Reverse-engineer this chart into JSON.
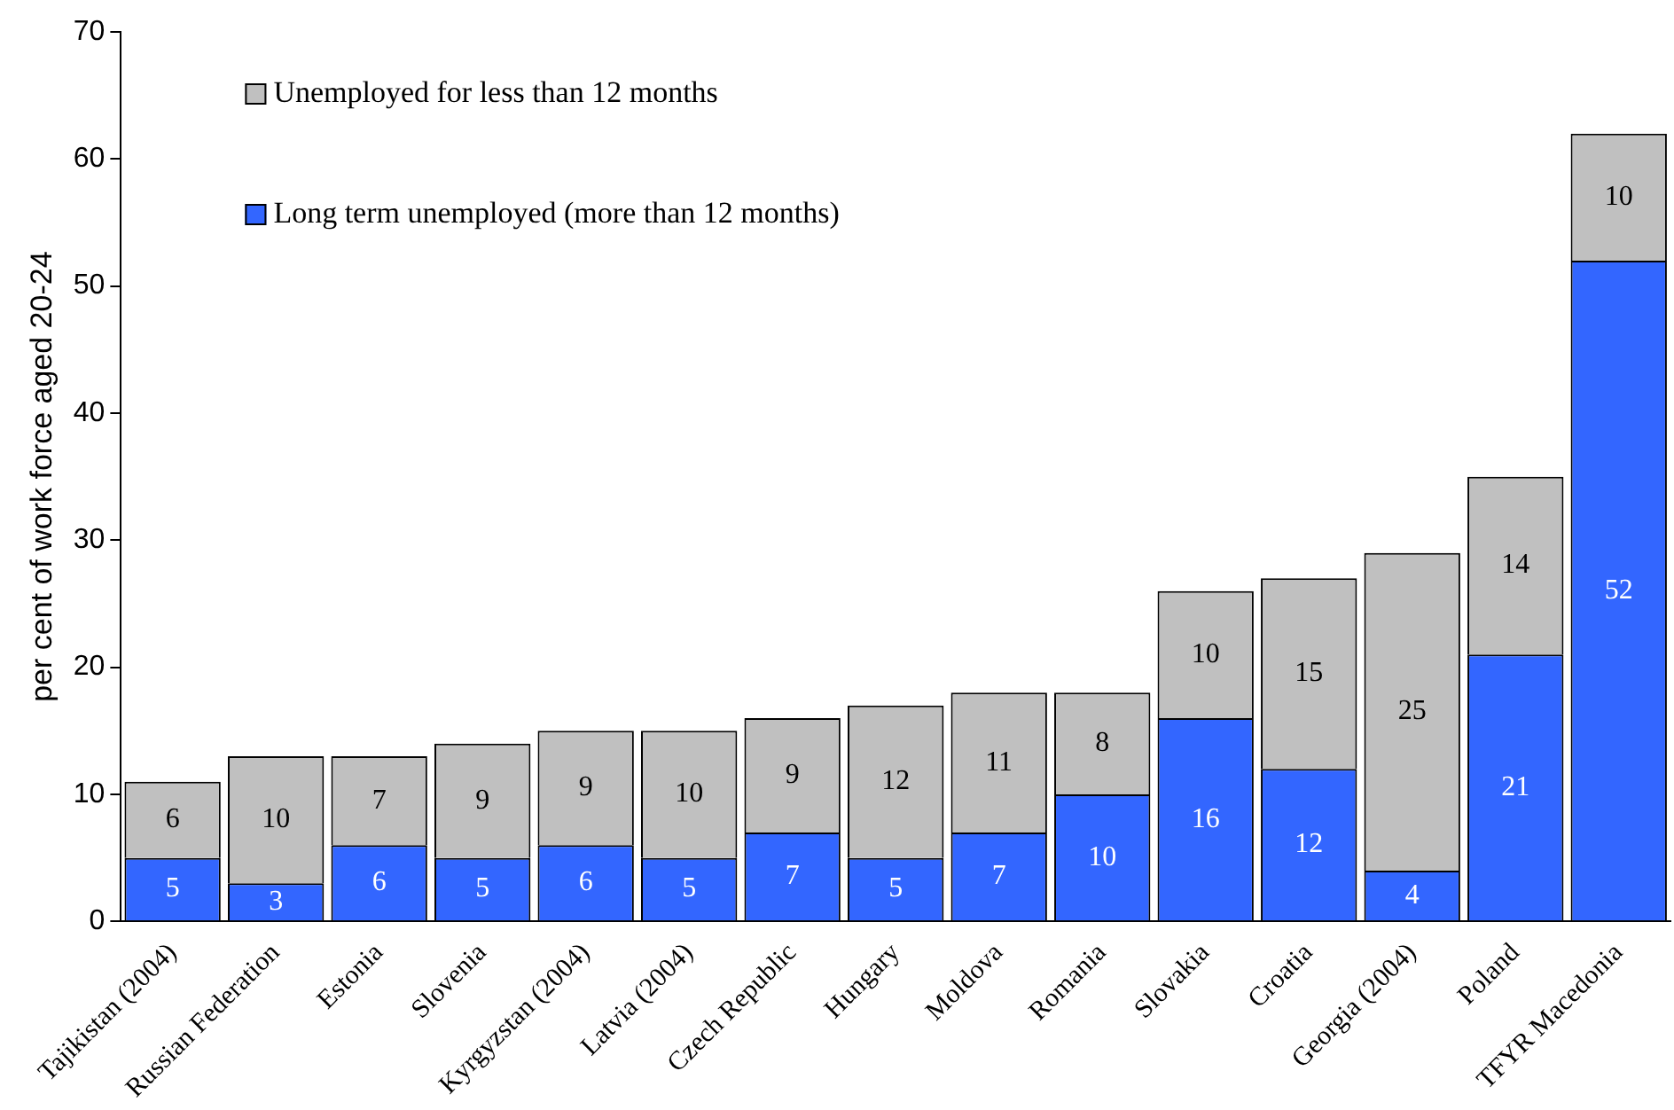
{
  "chart_data": {
    "type": "bar",
    "stacked": true,
    "ylabel": "per cent of work force aged 20-24",
    "categories": [
      "Tajikistan (2004)",
      "Russian Federation",
      "Estonia",
      "Slovenia",
      "Kyrgyzstan (2004)",
      "Latvia (2004)",
      "Czech Republic",
      "Hungary",
      "Moldova",
      "Romania",
      "Slovakia",
      "Croatia",
      "Georgia (2004)",
      "Poland",
      "TFYR Macedonia"
    ],
    "series": [
      {
        "name": "Long term unemployed (more than 12 months)",
        "color": "#3366ff",
        "values": [
          5,
          3,
          6,
          5,
          6,
          5,
          7,
          5,
          7,
          10,
          16,
          12,
          4,
          21,
          52
        ]
      },
      {
        "name": "Unemployed for less than 12 months",
        "color": "#c0c0c0",
        "values": [
          6,
          10,
          7,
          9,
          9,
          10,
          9,
          12,
          11,
          8,
          10,
          15,
          25,
          14,
          10
        ]
      }
    ],
    "ylim": [
      0,
      70
    ],
    "yticks": [
      0,
      10,
      20,
      30,
      40,
      50,
      60,
      70
    ],
    "grid": false,
    "legend": "top left",
    "data_labels": true
  }
}
